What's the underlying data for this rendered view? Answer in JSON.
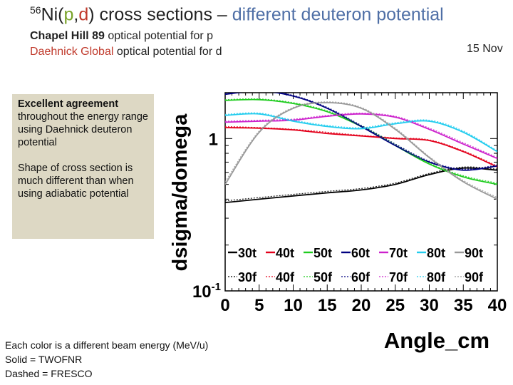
{
  "header": {
    "title_sup": "56",
    "title_ni": "Ni(",
    "title_p": "p",
    "title_comma": ",",
    "title_d": "d",
    "title_close": ") cross sections – ",
    "title_rest": "different deuteron potential",
    "sub1_bold": "Chapel Hill 89",
    "sub1_rest": " optical potential for p",
    "sub2_colored": "Daehnick Global",
    "sub2_rest": " optical potential for d",
    "date": "15 Nov"
  },
  "notes": {
    "para1_bold": "Excellent agreement",
    "para1_rest": " throughout the energy range using Daehnick deuteron potential",
    "para2": "Shape of cross section is much different than when using adiabatic potential"
  },
  "footer": {
    "line1": "Each color is a different beam energy (MeV/u)",
    "line2": "Solid = TWOFNR",
    "line3": "Dashed = FRESCO"
  },
  "chart_data": {
    "type": "line",
    "xlabel": "Angle_cm",
    "ylabel": "dsigma/domega",
    "xlim": [
      0,
      40
    ],
    "ylim": [
      0.1,
      2
    ],
    "log_y": true,
    "x_ticks": [
      "0",
      "5",
      "10",
      "15",
      "20",
      "25",
      "30",
      "35",
      "40"
    ],
    "y_ticks": [
      {
        "value": 1,
        "label": "1"
      },
      {
        "value": 0.1,
        "label": "10",
        "sup": "-1"
      }
    ],
    "legend_rows": [
      [
        "30t",
        "40t",
        "50t",
        "60t",
        "70t",
        "80t",
        "90t"
      ],
      [
        "30f",
        "40f",
        "50f",
        "60f",
        "70f",
        "80f",
        "90f"
      ]
    ],
    "series": [
      {
        "name": "30t",
        "color": "#000000",
        "style": "solid",
        "x": [
          0,
          5,
          10,
          15,
          20,
          25,
          30,
          35,
          40
        ],
        "y": [
          0.38,
          0.4,
          0.42,
          0.44,
          0.46,
          0.5,
          0.58,
          0.64,
          0.62
        ]
      },
      {
        "name": "40t",
        "color": "#e3001b",
        "style": "solid",
        "x": [
          0,
          5,
          10,
          15,
          20,
          25,
          30,
          35,
          40
        ],
        "y": [
          1.18,
          1.17,
          1.14,
          1.08,
          1.04,
          1.0,
          0.97,
          0.82,
          0.65
        ]
      },
      {
        "name": "50t",
        "color": "#1fcc1f",
        "style": "solid",
        "x": [
          0,
          5,
          10,
          15,
          20,
          25,
          30,
          35,
          40
        ],
        "y": [
          1.78,
          1.8,
          1.7,
          1.5,
          1.2,
          0.9,
          0.68,
          0.56,
          0.5
        ]
      },
      {
        "name": "60t",
        "color": "#000080",
        "style": "solid",
        "x": [
          0,
          5,
          10,
          15,
          20,
          25,
          30,
          35,
          40
        ],
        "y": [
          1.95,
          2.05,
          1.9,
          1.58,
          1.2,
          0.9,
          0.7,
          0.62,
          0.66
        ]
      },
      {
        "name": "70t",
        "color": "#cc22cc",
        "style": "solid",
        "x": [
          0,
          5,
          10,
          15,
          20,
          25,
          30,
          35,
          40
        ],
        "y": [
          1.28,
          1.3,
          1.32,
          1.4,
          1.45,
          1.38,
          1.15,
          0.92,
          0.74
        ]
      },
      {
        "name": "80t",
        "color": "#22ccee",
        "style": "solid",
        "x": [
          0,
          5,
          10,
          15,
          20,
          25,
          30,
          35,
          40
        ],
        "y": [
          1.42,
          1.45,
          1.3,
          1.2,
          1.16,
          1.25,
          1.3,
          1.1,
          0.82
        ]
      },
      {
        "name": "90t",
        "color": "#999999",
        "style": "solid",
        "x": [
          0,
          5,
          10,
          15,
          20,
          25,
          30,
          35,
          40
        ],
        "y": [
          0.5,
          1.1,
          1.58,
          1.72,
          1.58,
          1.15,
          0.75,
          0.52,
          0.4
        ]
      },
      {
        "name": "30f",
        "color": "#000000",
        "style": "dashed",
        "x": [
          0,
          5,
          10,
          15,
          20,
          25,
          30,
          35,
          40
        ],
        "y": [
          0.39,
          0.41,
          0.43,
          0.45,
          0.47,
          0.51,
          0.59,
          0.65,
          0.63
        ]
      },
      {
        "name": "40f",
        "color": "#e3001b",
        "style": "dashed",
        "x": [
          0,
          5,
          10,
          15,
          20,
          25,
          30,
          35,
          40
        ],
        "y": [
          1.2,
          1.18,
          1.15,
          1.1,
          1.05,
          1.01,
          0.98,
          0.83,
          0.66
        ]
      },
      {
        "name": "50f",
        "color": "#1fcc1f",
        "style": "dashed",
        "x": [
          0,
          5,
          10,
          15,
          20,
          25,
          30,
          35,
          40
        ],
        "y": [
          1.8,
          1.82,
          1.72,
          1.52,
          1.22,
          0.92,
          0.69,
          0.57,
          0.51
        ]
      },
      {
        "name": "60f",
        "color": "#000080",
        "style": "dashed",
        "x": [
          0,
          5,
          10,
          15,
          20,
          25,
          30,
          35,
          40
        ],
        "y": [
          1.97,
          2.07,
          1.92,
          1.6,
          1.22,
          0.92,
          0.71,
          0.63,
          0.67
        ]
      },
      {
        "name": "70f",
        "color": "#cc22cc",
        "style": "dashed",
        "x": [
          0,
          5,
          10,
          15,
          20,
          25,
          30,
          35,
          40
        ],
        "y": [
          1.3,
          1.32,
          1.34,
          1.42,
          1.47,
          1.4,
          1.17,
          0.94,
          0.75
        ]
      },
      {
        "name": "80f",
        "color": "#22ccee",
        "style": "dashed",
        "x": [
          0,
          5,
          10,
          15,
          20,
          25,
          30,
          35,
          40
        ],
        "y": [
          1.44,
          1.47,
          1.32,
          1.22,
          1.18,
          1.27,
          1.32,
          1.12,
          0.83
        ]
      },
      {
        "name": "90f",
        "color": "#999999",
        "style": "dashed",
        "x": [
          0,
          5,
          10,
          15,
          20,
          25,
          30,
          35,
          40
        ],
        "y": [
          0.52,
          1.12,
          1.6,
          1.74,
          1.6,
          1.17,
          0.76,
          0.53,
          0.41
        ]
      }
    ]
  }
}
